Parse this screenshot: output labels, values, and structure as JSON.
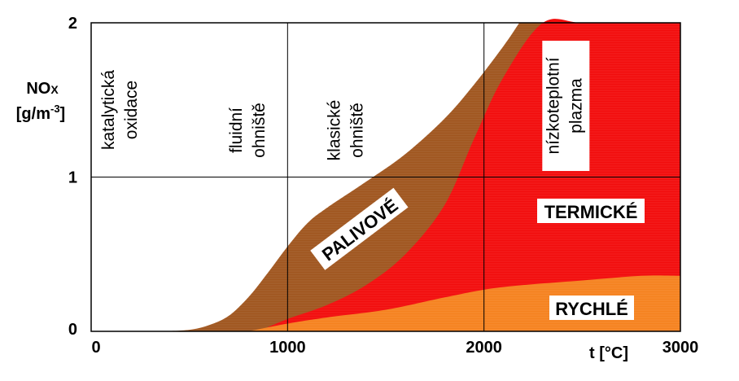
{
  "chart_data": {
    "type": "area",
    "xlabel": "t [°C]",
    "ylabel_line1": "NO",
    "ylabel_sub": "X",
    "ylabel_line2": "[g/m",
    "ylabel_sup": "-3",
    "ylabel_close": "]",
    "xlim": [
      0,
      3000
    ],
    "ylim": [
      0,
      2
    ],
    "x_ticks": [
      "0",
      "1000",
      "2000",
      "3000"
    ],
    "y_ticks": [
      "0",
      "1",
      "2"
    ],
    "grid": true,
    "colors": {
      "palivove": "#a0561f",
      "termicke": "#f20d0d",
      "rychle": "#f5821f"
    },
    "series": [
      {
        "name": "RYCHLÉ",
        "x": [
          800,
          1000,
          1200,
          1500,
          1800,
          2000,
          2200,
          2500,
          2800,
          3000
        ],
        "y": [
          0.0,
          0.05,
          0.09,
          0.14,
          0.22,
          0.27,
          0.3,
          0.33,
          0.36,
          0.36
        ]
      },
      {
        "name": "TERMICKÉ",
        "x": [
          850,
          1000,
          1200,
          1400,
          1600,
          1800,
          1950,
          2100,
          2300,
          2500,
          2800,
          3000
        ],
        "y": [
          0.0,
          0.08,
          0.17,
          0.3,
          0.5,
          0.82,
          1.25,
          1.65,
          2.0,
          2.0,
          2.0,
          2.0
        ]
      },
      {
        "name": "PALIVOVÉ",
        "x": [
          350,
          500,
          600,
          700,
          800,
          900,
          1000,
          1100,
          1200,
          1400,
          1600,
          1800,
          1950,
          2100,
          2180
        ],
        "y": [
          0.0,
          0.01,
          0.04,
          0.1,
          0.22,
          0.38,
          0.55,
          0.7,
          0.8,
          0.97,
          1.15,
          1.38,
          1.6,
          1.85,
          2.0
        ]
      }
    ],
    "region_labels": {
      "palivove": "PALIVOVÉ",
      "termicke": "TERMICKÉ",
      "rychle": "RYCHLÉ"
    },
    "vertical_annotations": [
      {
        "x": 100,
        "lines": [
          "katalytická",
          "oxidace"
        ]
      },
      {
        "x": 750,
        "lines": [
          "fluidní",
          "ohniště"
        ]
      },
      {
        "x": 1250,
        "lines": [
          "klasické",
          "ohniště"
        ]
      },
      {
        "x": 2330,
        "lines": [
          "nízkoteplotní",
          "plazma"
        ]
      }
    ]
  }
}
